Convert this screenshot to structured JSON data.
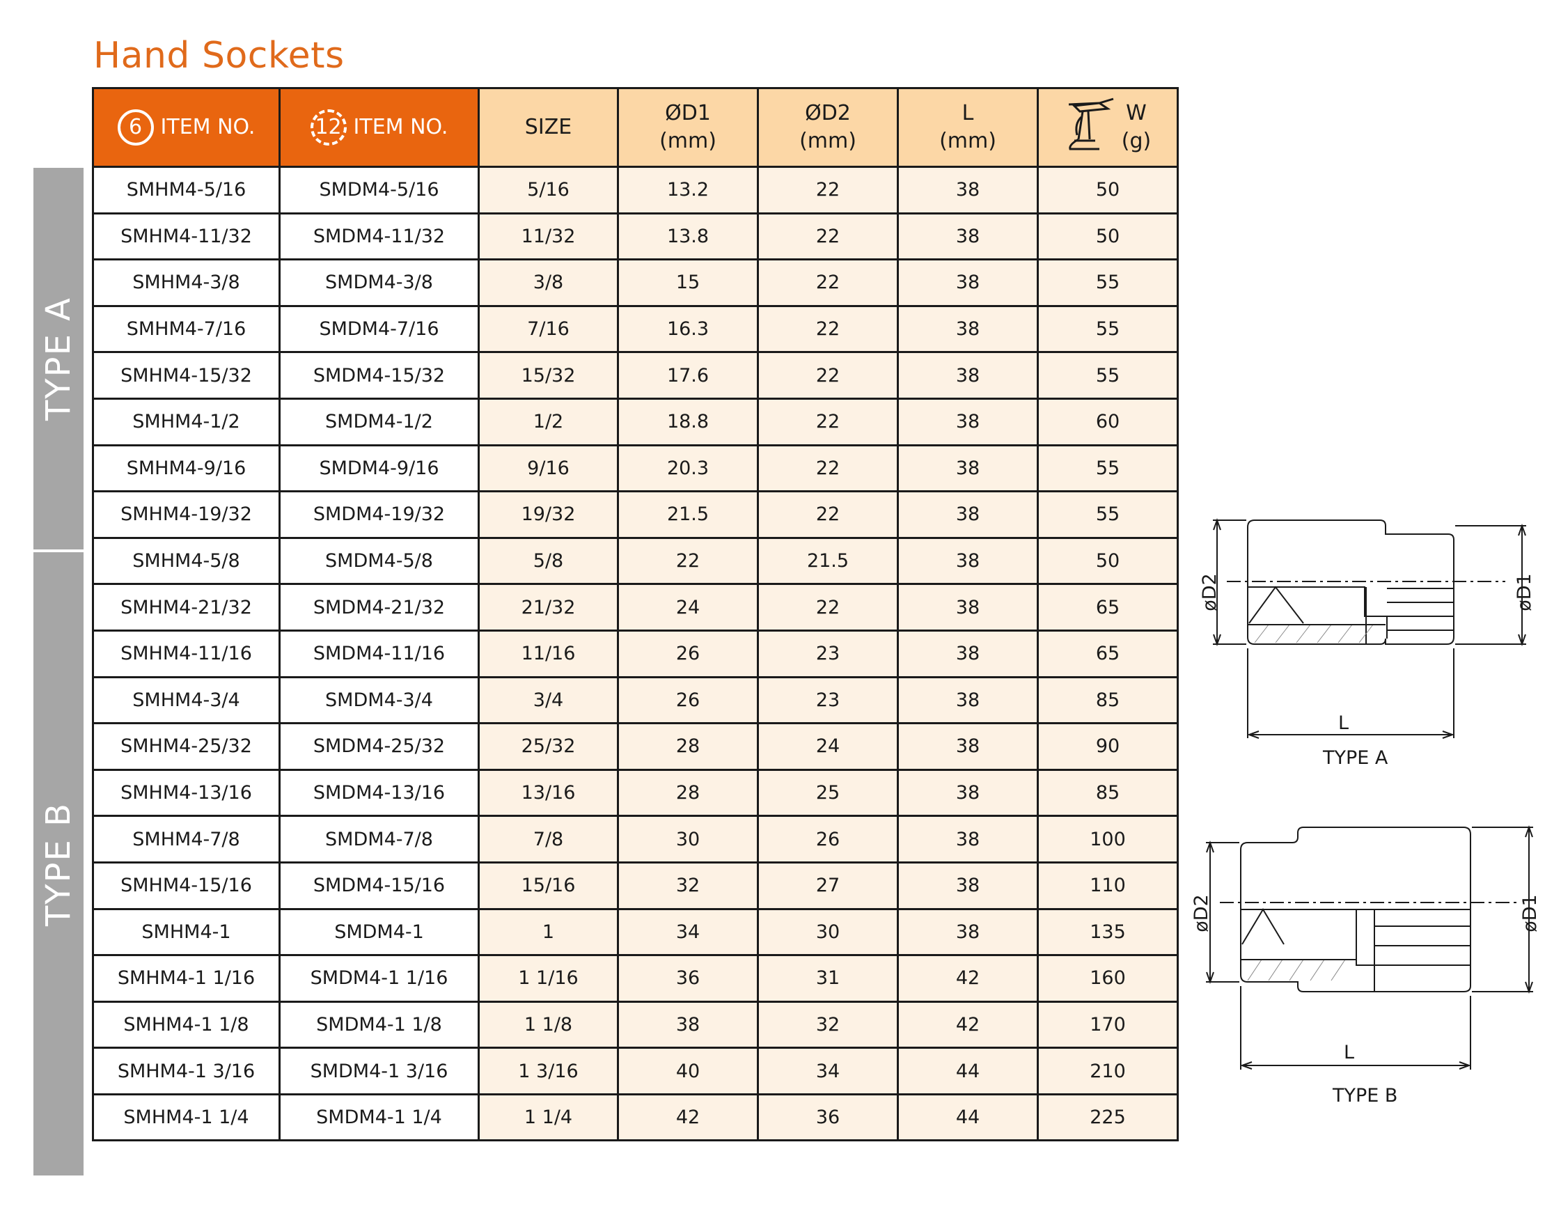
{
  "page": {
    "title": "Hand Sockets"
  },
  "side_labels": {
    "type_a": "TYPE A",
    "type_b": "TYPE B"
  },
  "table": {
    "headers": {
      "item6_badge": "6",
      "item6": "ITEM NO.",
      "item12_badge": "12",
      "item12": "ITEM NO.",
      "size": "SIZE",
      "d1": "ØD1",
      "d1_unit": "(mm)",
      "d2": "ØD2",
      "d2_unit": "(mm)",
      "l": "L",
      "l_unit": "(mm)",
      "w": "W",
      "w_unit": "(g)"
    },
    "rows": [
      {
        "item6": "SMHM4-5/16",
        "item12": "SMDM4-5/16",
        "size": "5/16",
        "d1": "13.2",
        "d2": "22",
        "l": "38",
        "w": "50"
      },
      {
        "item6": "SMHM4-11/32",
        "item12": "SMDM4-11/32",
        "size": "11/32",
        "d1": "13.8",
        "d2": "22",
        "l": "38",
        "w": "50"
      },
      {
        "item6": "SMHM4-3/8",
        "item12": "SMDM4-3/8",
        "size": "3/8",
        "d1": "15",
        "d2": "22",
        "l": "38",
        "w": "55"
      },
      {
        "item6": "SMHM4-7/16",
        "item12": "SMDM4-7/16",
        "size": "7/16",
        "d1": "16.3",
        "d2": "22",
        "l": "38",
        "w": "55"
      },
      {
        "item6": "SMHM4-15/32",
        "item12": "SMDM4-15/32",
        "size": "15/32",
        "d1": "17.6",
        "d2": "22",
        "l": "38",
        "w": "55"
      },
      {
        "item6": "SMHM4-1/2",
        "item12": "SMDM4-1/2",
        "size": "1/2",
        "d1": "18.8",
        "d2": "22",
        "l": "38",
        "w": "60"
      },
      {
        "item6": "SMHM4-9/16",
        "item12": "SMDM4-9/16",
        "size": "9/16",
        "d1": "20.3",
        "d2": "22",
        "l": "38",
        "w": "55"
      },
      {
        "item6": "SMHM4-19/32",
        "item12": "SMDM4-19/32",
        "size": "19/32",
        "d1": "21.5",
        "d2": "22",
        "l": "38",
        "w": "55"
      },
      {
        "item6": "SMHM4-5/8",
        "item12": "SMDM4-5/8",
        "size": "5/8",
        "d1": "22",
        "d2": "21.5",
        "l": "38",
        "w": "50"
      },
      {
        "item6": "SMHM4-21/32",
        "item12": "SMDM4-21/32",
        "size": "21/32",
        "d1": "24",
        "d2": "22",
        "l": "38",
        "w": "65"
      },
      {
        "item6": "SMHM4-11/16",
        "item12": "SMDM4-11/16",
        "size": "11/16",
        "d1": "26",
        "d2": "23",
        "l": "38",
        "w": "65"
      },
      {
        "item6": "SMHM4-3/4",
        "item12": "SMDM4-3/4",
        "size": "3/4",
        "d1": "26",
        "d2": "23",
        "l": "38",
        "w": "85"
      },
      {
        "item6": "SMHM4-25/32",
        "item12": "SMDM4-25/32",
        "size": "25/32",
        "d1": "28",
        "d2": "24",
        "l": "38",
        "w": "90"
      },
      {
        "item6": "SMHM4-13/16",
        "item12": "SMDM4-13/16",
        "size": "13/16",
        "d1": "28",
        "d2": "25",
        "l": "38",
        "w": "85"
      },
      {
        "item6": "SMHM4-7/8",
        "item12": "SMDM4-7/8",
        "size": "7/8",
        "d1": "30",
        "d2": "26",
        "l": "38",
        "w": "100"
      },
      {
        "item6": "SMHM4-15/16",
        "item12": "SMDM4-15/16",
        "size": "15/16",
        "d1": "32",
        "d2": "27",
        "l": "38",
        "w": "110"
      },
      {
        "item6": "SMHM4-1",
        "item12": "SMDM4-1",
        "size": "1",
        "d1": "34",
        "d2": "30",
        "l": "38",
        "w": "135"
      },
      {
        "item6": "SMHM4-1 1/16",
        "item12": "SMDM4-1 1/16",
        "size": "1 1/16",
        "d1": "36",
        "d2": "31",
        "l": "42",
        "w": "160"
      },
      {
        "item6": "SMHM4-1 1/8",
        "item12": "SMDM4-1 1/8",
        "size": "1 1/8",
        "d1": "38",
        "d2": "32",
        "l": "42",
        "w": "170"
      },
      {
        "item6": "SMHM4-1 3/16",
        "item12": "SMDM4-1 3/16",
        "size": "1 3/16",
        "d1": "40",
        "d2": "34",
        "l": "44",
        "w": "210"
      },
      {
        "item6": "SMHM4-1 1/4",
        "item12": "SMDM4-1 1/4",
        "size": "1 1/4",
        "d1": "42",
        "d2": "36",
        "l": "44",
        "w": "225"
      }
    ]
  },
  "drawings": {
    "type_a": {
      "caption": "TYPE A",
      "d2": "øD2",
      "d1": "øD1",
      "l": "L"
    },
    "type_b": {
      "caption": "TYPE B",
      "d2": "øD2",
      "d1": "øD1",
      "l": "L"
    }
  },
  "colors": {
    "title": "#e06a1b",
    "header_orange": "#e9650f",
    "header_peach": "#fcd7a6",
    "cell_cream": "#fdf2e4",
    "side_band": "#a6a6a6",
    "type_divider": "#c8262c"
  },
  "icons": {
    "hex_badge": "hex-socket-icon",
    "dodeca_badge": "12-point-socket-icon",
    "weight": "scale-icon"
  }
}
